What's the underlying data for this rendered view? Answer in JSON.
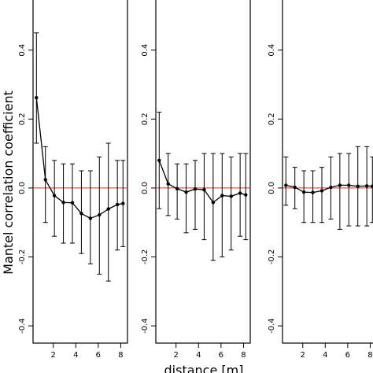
{
  "chart_data": {
    "type": "line",
    "ylabel": "Mantel correlation coefficient",
    "xlabel": "distance [m]",
    "x_ticks": [
      2,
      4,
      6,
      8
    ],
    "y_ticks": [
      -0.4,
      -0.2,
      0.0,
      0.2,
      0.4
    ],
    "y_tick_labels": [
      "-0.4",
      "-0.2",
      "0.0",
      "0.2",
      "0.4"
    ],
    "xlim": [
      0.2,
      8.6
    ],
    "ylim": [
      -0.45,
      0.55
    ],
    "reference_line": {
      "y": 0.0,
      "color": "#c0392b"
    },
    "panels": [
      {
        "title": "",
        "x": [
          0.5,
          1.3,
          2.1,
          2.9,
          3.7,
          4.5,
          5.3,
          6.1,
          6.9,
          7.7,
          8.2
        ],
        "y": [
          0.262,
          0.024,
          -0.022,
          -0.042,
          -0.043,
          -0.074,
          -0.088,
          -0.078,
          -0.061,
          -0.048,
          -0.045
        ],
        "lower": [
          0.13,
          -0.1,
          -0.14,
          -0.16,
          -0.16,
          -0.19,
          -0.22,
          -0.25,
          -0.27,
          -0.18,
          -0.17
        ],
        "upper": [
          0.45,
          0.12,
          0.08,
          0.07,
          0.07,
          0.05,
          0.05,
          0.09,
          0.13,
          0.08,
          0.08
        ]
      },
      {
        "title": "",
        "x": [
          0.5,
          1.3,
          2.1,
          2.9,
          3.7,
          4.5,
          5.3,
          6.1,
          6.9,
          7.7,
          8.2
        ],
        "y": [
          0.08,
          0.012,
          -0.002,
          -0.012,
          -0.003,
          -0.005,
          -0.042,
          -0.022,
          -0.024,
          -0.015,
          -0.02
        ],
        "lower": [
          -0.06,
          -0.08,
          -0.09,
          -0.13,
          -0.12,
          -0.15,
          -0.21,
          -0.2,
          -0.18,
          -0.14,
          -0.15
        ],
        "upper": [
          0.22,
          0.1,
          0.07,
          0.07,
          0.08,
          0.1,
          0.1,
          0.1,
          0.09,
          0.1,
          0.1
        ]
      },
      {
        "title": "",
        "x": [
          0.5,
          1.3,
          2.1,
          2.9,
          3.7,
          4.5,
          5.3,
          6.1,
          6.9,
          7.7,
          8.2
        ],
        "y": [
          0.008,
          0.002,
          -0.012,
          -0.013,
          -0.008,
          0.002,
          0.008,
          0.008,
          0.005,
          0.006,
          0.005
        ],
        "lower": [
          -0.05,
          -0.06,
          -0.1,
          -0.1,
          -0.1,
          -0.09,
          -0.12,
          -0.11,
          -0.11,
          -0.11,
          -0.1
        ],
        "upper": [
          0.09,
          0.06,
          0.05,
          0.05,
          0.06,
          0.09,
          0.1,
          0.1,
          0.12,
          0.12,
          0.09
        ]
      }
    ]
  }
}
